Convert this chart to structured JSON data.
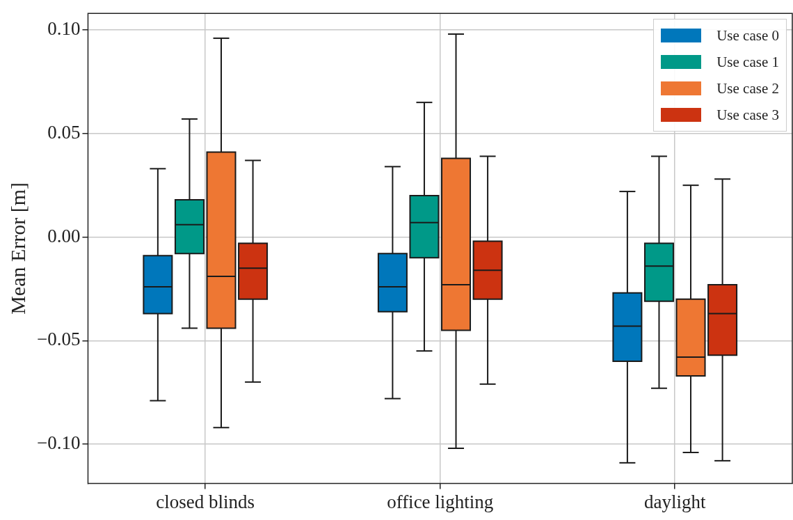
{
  "chart_data": {
    "type": "box",
    "ylabel": "Mean Error [m]",
    "categories": [
      "closed blinds",
      "office lighting",
      "daylight"
    ],
    "series": [
      {
        "name": "Use case 0",
        "color": "#0077bb",
        "boxes": [
          {
            "low": -0.079,
            "q1": -0.037,
            "median": -0.024,
            "q3": -0.009,
            "high": 0.033
          },
          {
            "low": -0.078,
            "q1": -0.036,
            "median": -0.024,
            "q3": -0.008,
            "high": 0.034
          },
          {
            "low": -0.109,
            "q1": -0.06,
            "median": -0.043,
            "q3": -0.027,
            "high": 0.022
          }
        ]
      },
      {
        "name": "Use case 1",
        "color": "#009988",
        "boxes": [
          {
            "low": -0.044,
            "q1": -0.008,
            "median": 0.006,
            "q3": 0.018,
            "high": 0.057
          },
          {
            "low": -0.055,
            "q1": -0.01,
            "median": 0.007,
            "q3": 0.02,
            "high": 0.065
          },
          {
            "low": -0.073,
            "q1": -0.031,
            "median": -0.014,
            "q3": -0.003,
            "high": 0.039
          }
        ]
      },
      {
        "name": "Use case 2",
        "color": "#ee7733",
        "boxes": [
          {
            "low": -0.092,
            "q1": -0.044,
            "median": -0.019,
            "q3": 0.041,
            "high": 0.096
          },
          {
            "low": -0.102,
            "q1": -0.045,
            "median": -0.023,
            "q3": 0.038,
            "high": 0.098
          },
          {
            "low": -0.104,
            "q1": -0.067,
            "median": -0.058,
            "q3": -0.03,
            "high": 0.025
          }
        ]
      },
      {
        "name": "Use case 3",
        "color": "#cc3311",
        "boxes": [
          {
            "low": -0.07,
            "q1": -0.03,
            "median": -0.015,
            "q3": -0.003,
            "high": 0.037
          },
          {
            "low": -0.071,
            "q1": -0.03,
            "median": -0.016,
            "q3": -0.002,
            "high": 0.039
          },
          {
            "low": -0.108,
            "q1": -0.057,
            "median": -0.037,
            "q3": -0.023,
            "high": 0.028
          }
        ]
      }
    ],
    "ylim": [
      -0.119,
      0.108
    ],
    "yticks": [
      {
        "value": -0.1,
        "label": "−0.10"
      },
      {
        "value": -0.05,
        "label": "−0.05"
      },
      {
        "value": 0,
        "label": "0.00"
      },
      {
        "value": 0.05,
        "label": "0.05"
      },
      {
        "value": 0.1,
        "label": "0.10"
      }
    ],
    "grid": true,
    "legend": "top right"
  }
}
